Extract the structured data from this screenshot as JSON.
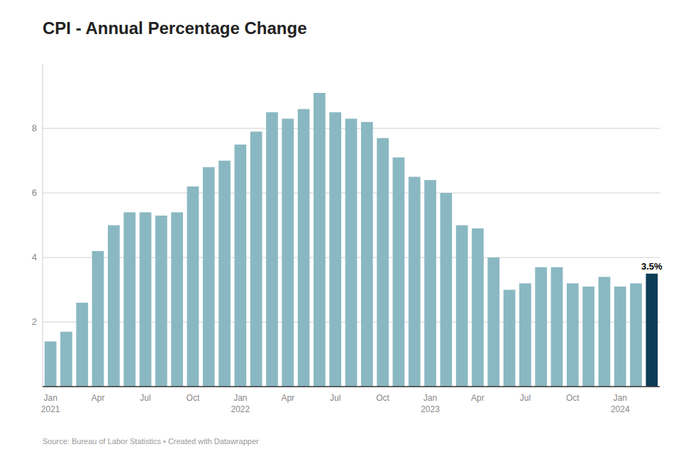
{
  "chart_data": {
    "type": "bar",
    "title": "CPI - Annual Percentage Change",
    "source": "Source: Bureau of Labor Statistics • Created with Datawrapper",
    "categories": [
      "Jan\n2021",
      null,
      null,
      "Apr",
      null,
      null,
      "Jul",
      null,
      null,
      "Oct",
      null,
      null,
      "Jan\n2022",
      null,
      null,
      "Apr",
      null,
      null,
      "Jul",
      null,
      null,
      "Oct",
      null,
      null,
      "Jan\n2023",
      null,
      null,
      "Apr",
      null,
      null,
      "Jul",
      null,
      null,
      "Oct",
      null,
      null,
      "Jan\n2024",
      null,
      null
    ],
    "values": [
      1.4,
      1.7,
      2.6,
      4.2,
      5.0,
      5.4,
      5.4,
      5.3,
      5.4,
      6.2,
      6.8,
      7.0,
      7.5,
      7.9,
      8.5,
      8.3,
      8.6,
      9.1,
      8.5,
      8.3,
      8.2,
      7.7,
      7.1,
      6.5,
      6.4,
      6.0,
      5.0,
      4.9,
      4.0,
      3.0,
      3.2,
      3.7,
      3.7,
      3.2,
      3.1,
      3.4,
      3.1,
      3.2,
      3.5
    ],
    "colors": [
      "#8ab8c2",
      "#8ab8c2",
      "#8ab8c2",
      "#8ab8c2",
      "#8ab8c2",
      "#8ab8c2",
      "#8ab8c2",
      "#8ab8c2",
      "#8ab8c2",
      "#8ab8c2",
      "#8ab8c2",
      "#8ab8c2",
      "#8ab8c2",
      "#8ab8c2",
      "#8ab8c2",
      "#8ab8c2",
      "#8ab8c2",
      "#8ab8c2",
      "#8ab8c2",
      "#8ab8c2",
      "#8ab8c2",
      "#8ab8c2",
      "#8ab8c2",
      "#8ab8c2",
      "#8ab8c2",
      "#8ab8c2",
      "#8ab8c2",
      "#8ab8c2",
      "#8ab8c2",
      "#8ab8c2",
      "#8ab8c2",
      "#8ab8c2",
      "#8ab8c2",
      "#8ab8c2",
      "#8ab8c2",
      "#8ab8c2",
      "#8ab8c2",
      "#8ab8c2",
      "#0d3d56"
    ],
    "annotations": [
      {
        "text": "3.5%",
        "x": 38,
        "y": 3.5
      }
    ],
    "ylim": [
      0,
      10
    ],
    "yticks": [
      2,
      4,
      6,
      8
    ],
    "grid": true
  }
}
